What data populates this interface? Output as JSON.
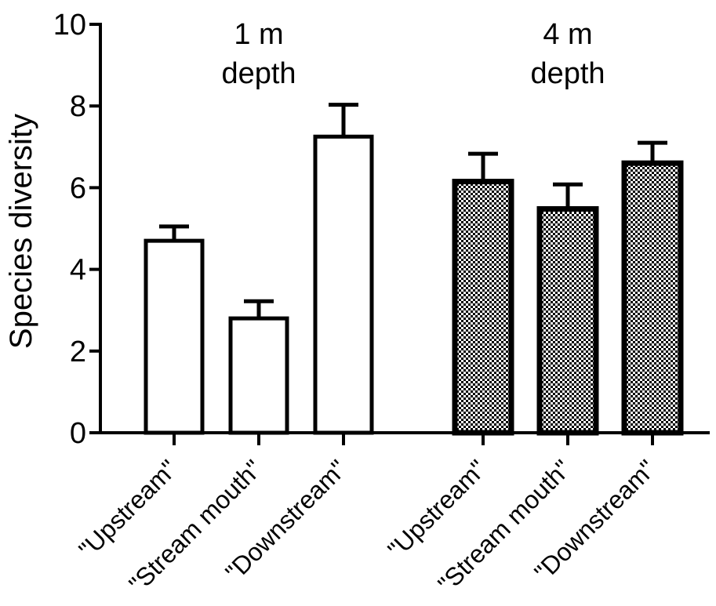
{
  "chart_data": {
    "type": "bar",
    "title": "",
    "xlabel": "",
    "ylabel": "Species diversity",
    "ylim": [
      0,
      10
    ],
    "yticks": [
      "0",
      "2",
      "4",
      "6",
      "8",
      "10"
    ],
    "grid": false,
    "groups": [
      {
        "label_line1": "1 m",
        "label_line2": "depth",
        "fill": "open",
        "bars": [
          {
            "category": "\"Upstream\"",
            "value": 4.7,
            "error": 0.35
          },
          {
            "category": "\"Stream mouth\"",
            "value": 2.8,
            "error": 0.42
          },
          {
            "category": "\"Downstream\"",
            "value": 7.25,
            "error": 0.78
          }
        ]
      },
      {
        "label_line1": "4 m",
        "label_line2": "depth",
        "fill": "checkered",
        "bars": [
          {
            "category": "\"Upstream\"",
            "value": 6.15,
            "error": 0.68
          },
          {
            "category": "\"Stream mouth\"",
            "value": 5.48,
            "error": 0.6
          },
          {
            "category": "\"Downstream\"",
            "value": 6.6,
            "error": 0.5
          }
        ]
      }
    ],
    "colors": {
      "stroke": "#000000",
      "fill_open": "#ffffff"
    }
  }
}
